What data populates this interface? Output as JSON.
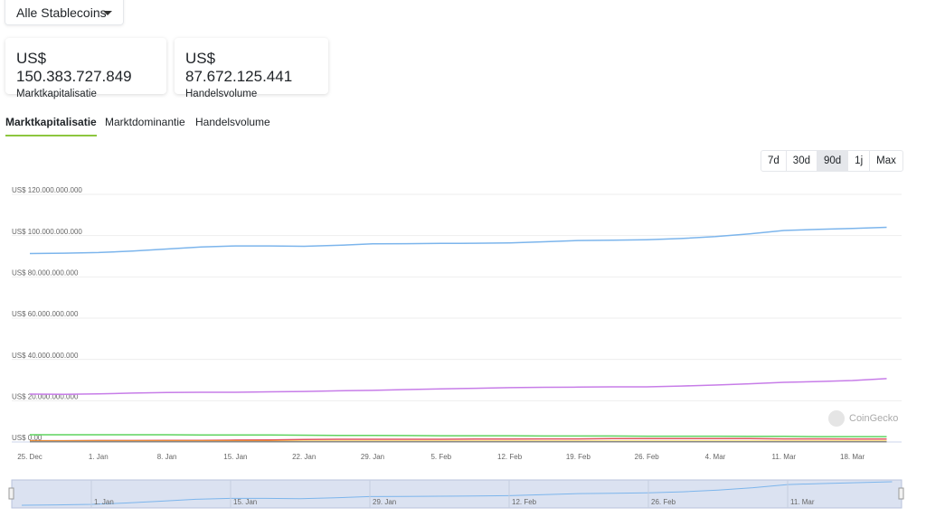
{
  "header": {
    "dropdown": "Alle Stablecoins"
  },
  "stats": [
    {
      "value": "US$ 150.383.727.849",
      "label": "Marktkapitalisatie"
    },
    {
      "value": "US$ 87.672.125.441",
      "label": "Handelsvolume"
    }
  ],
  "tabs": [
    "Marktkapitalisatie",
    "Marktdominantie",
    "Handelsvolume"
  ],
  "ranges": [
    "7d",
    "30d",
    "90d",
    "1j",
    "Max"
  ],
  "watermark": "CoinGecko",
  "chart_data": {
    "type": "line",
    "categories": [
      "25. Dec",
      null,
      "1. Jan",
      null,
      "8. Jan",
      null,
      "15. Jan",
      null,
      "22. Jan",
      null,
      "29. Jan",
      null,
      "5. Feb",
      null,
      "12. Feb",
      null,
      "19. Feb",
      null,
      "26. Feb",
      null,
      "4. Mar",
      null,
      "11. Mar",
      null,
      "18. Mar",
      null
    ],
    "series": [
      {
        "color": "#7cb5ec",
        "values": [
          91300000000,
          91500000000,
          91800000000,
          92500000000,
          93500000000,
          94500000000,
          95000000000,
          95000000000,
          94800000000,
          95300000000,
          96000000000,
          96100000000,
          96200000000,
          96300000000,
          96500000000,
          97000000000,
          97600000000,
          97800000000,
          98000000000,
          98600000000,
          99500000000,
          100800000000,
          102500000000,
          103000000000,
          103500000000,
          104000000000
        ]
      },
      {
        "color": "#c77de8",
        "values": [
          23200000000,
          23100000000,
          23300000000,
          23700000000,
          24000000000,
          24100000000,
          24100000000,
          24300000000,
          24500000000,
          24800000000,
          25000000000,
          25400000000,
          25700000000,
          26000000000,
          26300000000,
          26500000000,
          26600000000,
          26700000000,
          26700000000,
          27100000000,
          27600000000,
          28200000000,
          28900000000,
          29300000000,
          29800000000,
          30700000000
        ]
      },
      {
        "color": "#5fd35f",
        "values": [
          3500000000,
          3500000000,
          3500000000,
          3500000000,
          3500000000,
          3400000000,
          3400000000,
          3400000000,
          3300000000,
          3200000000,
          3200000000,
          3100000000,
          3000000000,
          3000000000,
          3000000000,
          2900000000,
          2900000000,
          2900000000,
          2800000000,
          2800000000,
          2800000000,
          2700000000,
          2700000000,
          2600000000,
          2600000000,
          2600000000
        ]
      },
      {
        "color": "#e0555b",
        "values": [
          600000000,
          600000000,
          700000000,
          700000000,
          800000000,
          800000000,
          900000000,
          1000000000,
          1200000000,
          1300000000,
          1300000000,
          1300000000,
          1300000000,
          1400000000,
          1400000000,
          1500000000,
          1500000000,
          1600000000,
          1600000000,
          1600000000,
          1600000000,
          1600000000,
          1500000000,
          1500000000,
          1400000000,
          1400000000
        ]
      },
      {
        "color": "#f1c40f",
        "values": [
          300000000,
          300000000,
          300000000,
          300000000,
          300000000,
          300000000,
          300000000,
          300000000,
          300000000,
          300000000,
          300000000,
          300000000,
          300000000,
          300000000,
          300000000,
          300000000,
          300000000,
          300000000,
          300000000,
          300000000,
          300000000,
          300000000,
          300000000,
          300000000,
          300000000,
          300000000
        ]
      },
      {
        "color": "#888888",
        "values": [
          100000000,
          100000000,
          100000000,
          100000000,
          100000000,
          100000000,
          100000000,
          100000000,
          100000000,
          100000000,
          100000000,
          100000000,
          100000000,
          100000000,
          100000000,
          100000000,
          100000000,
          100000000,
          100000000,
          100000000,
          100000000,
          100000000,
          100000000,
          100000000,
          100000000,
          100000000
        ]
      }
    ],
    "ylim": [
      0,
      120000000000
    ],
    "yticks": [
      {
        "value": 0,
        "label": "US$ 0.00"
      },
      {
        "value": 20000000000,
        "label": "US$ 20.000.000.000"
      },
      {
        "value": 40000000000,
        "label": "US$ 40.000.000.000"
      },
      {
        "value": 60000000000,
        "label": "US$ 60.000.000.000"
      },
      {
        "value": 80000000000,
        "label": "US$ 80.000.000.000"
      },
      {
        "value": 100000000000,
        "label": "US$ 100.000.000.000"
      },
      {
        "value": 120000000000,
        "label": "US$ 120.000.000.000"
      }
    ],
    "grid": true
  },
  "navigator": {
    "labels": [
      "1. Jan",
      "15. Jan",
      "29. Jan",
      "12. Feb",
      "26. Feb",
      "11. Mar"
    ]
  }
}
